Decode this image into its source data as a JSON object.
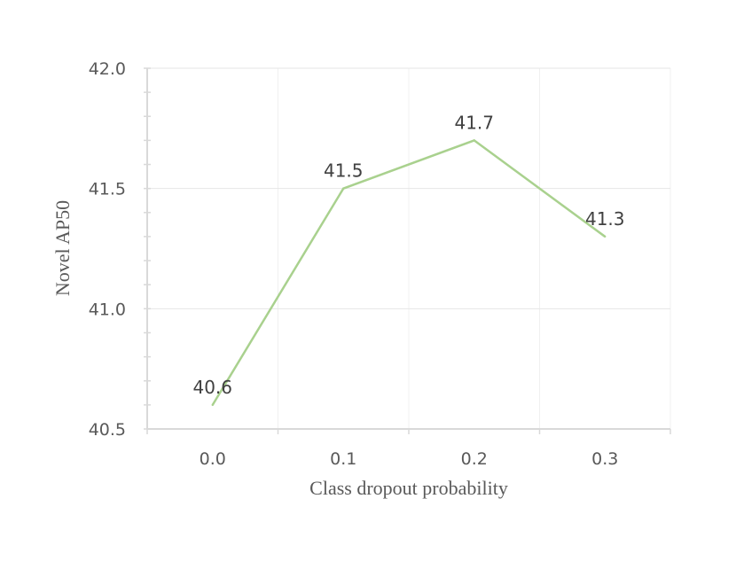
{
  "chart_data": {
    "type": "line",
    "title": "",
    "xlabel": "Class dropout probability",
    "ylabel": "Novel AP50",
    "categories": [
      "0.0",
      "0.1",
      "0.2",
      "0.3"
    ],
    "series": [
      {
        "values": [
          40.6,
          41.5,
          41.7,
          41.3
        ],
        "labels": [
          "40.6",
          "41.5",
          "41.7",
          "41.3"
        ]
      }
    ],
    "ylim": [
      40.5,
      42.0
    ],
    "yticks": [
      "40.5",
      "41.0",
      "41.5",
      "42.0"
    ],
    "grid": true,
    "colors": {
      "line": "#a9d18e",
      "grid": "#e6e6e6",
      "axis": "#d9d9d9"
    }
  }
}
